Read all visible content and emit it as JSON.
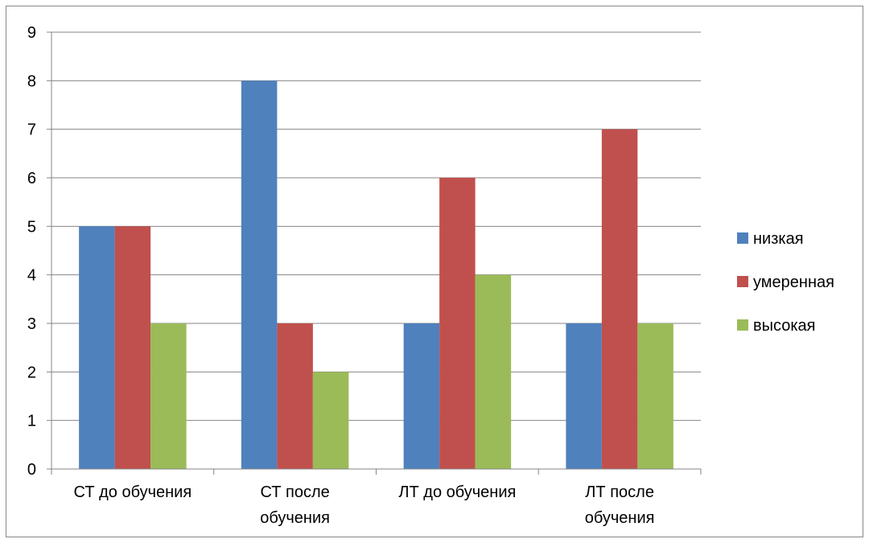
{
  "chart_data": {
    "type": "bar",
    "categories": [
      "СТ до обучения",
      "СТ после обучения",
      "ЛТ до обучения",
      "ЛТ после обучения"
    ],
    "category_lines": [
      [
        "СТ до обучения"
      ],
      [
        "СТ после",
        "обучения"
      ],
      [
        "ЛТ до обучения"
      ],
      [
        "ЛТ после",
        "обучения"
      ]
    ],
    "series": [
      {
        "name": "низкая",
        "color": "#4F81BD",
        "values": [
          5,
          8,
          3,
          3
        ]
      },
      {
        "name": "умеренная",
        "color": "#C0504D",
        "values": [
          5,
          3,
          6,
          7
        ]
      },
      {
        "name": "высокая",
        "color": "#9BBB59",
        "values": [
          3,
          2,
          4,
          3
        ]
      }
    ],
    "yticks": [
      "0",
      "1",
      "2",
      "3",
      "4",
      "5",
      "6",
      "7",
      "8",
      "9"
    ],
    "ylim": [
      0,
      9
    ],
    "grid": true,
    "legend_position": "right"
  }
}
